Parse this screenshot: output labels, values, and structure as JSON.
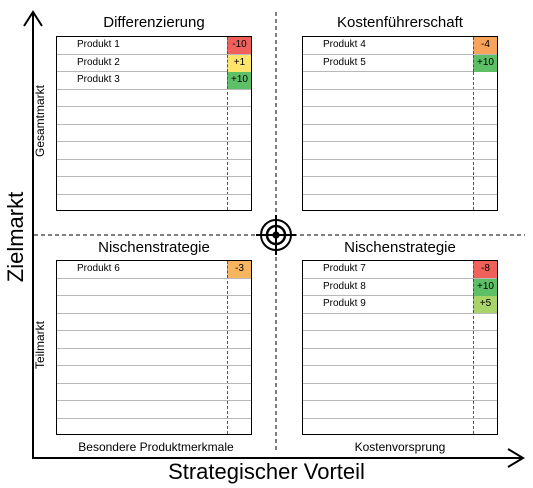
{
  "axes": {
    "y_title": "Zielmarkt",
    "x_title": "Strategischer Vorteil",
    "y_top_label": "Gesamtmarkt",
    "y_bottom_label": "Teilmarkt",
    "x_left_label": "Besondere Produktmerkmale",
    "x_right_label": "Kostenvorsprung"
  },
  "quadrants": [
    {
      "title": "Differenzierung",
      "products": [
        {
          "name": "Produkt 1",
          "score": "-10",
          "color": "#f0615b"
        },
        {
          "name": "Produkt 2",
          "score": "+1",
          "color": "#fde46a"
        },
        {
          "name": "Produkt 3",
          "score": "+10",
          "color": "#5dbf66"
        }
      ]
    },
    {
      "title": "Kostenführerschaft",
      "products": [
        {
          "name": "Produkt 4",
          "score": "-4",
          "color": "#f7a35c"
        },
        {
          "name": "Produkt 5",
          "score": "+10",
          "color": "#5dbf66"
        }
      ]
    },
    {
      "title": "Nischenstrategie",
      "products": [
        {
          "name": "Produkt 6",
          "score": "-3",
          "color": "#f8b560"
        }
      ]
    },
    {
      "title": "Nischenstrategie",
      "products": [
        {
          "name": "Produkt 7",
          "score": "-8",
          "color": "#f0615b"
        },
        {
          "name": "Produkt 8",
          "score": "+10",
          "color": "#5dbf66"
        },
        {
          "name": "Produkt 9",
          "score": "+5",
          "color": "#a9d46a"
        }
      ]
    }
  ],
  "icons": {
    "center": "target-icon"
  }
}
